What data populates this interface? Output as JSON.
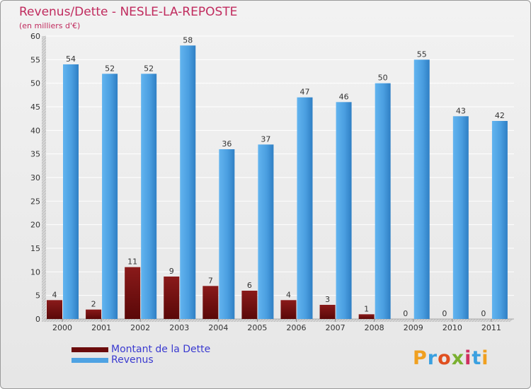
{
  "header": {
    "title": "Revenus/Dette - NESLE-LA-REPOSTE",
    "subtitle": "(en milliers d'€)"
  },
  "colors": {
    "debt": "#7a1212",
    "revenue": "#4fa3e3",
    "title": "#c02b5e",
    "legend_text": "#3a3ad0"
  },
  "legend": {
    "items": [
      {
        "label": "Montant de la Dette",
        "color": "#6b0c0c"
      },
      {
        "label": "Revenus",
        "color": "#4fa3e3"
      }
    ]
  },
  "logo": {
    "text": "Proxiti"
  },
  "chart_data": {
    "type": "bar",
    "title": "Revenus/Dette - NESLE-LA-REPOSTE",
    "subtitle": "(en milliers d'€)",
    "xlabel": "",
    "ylabel": "",
    "ylim": [
      0,
      60
    ],
    "yticks": [
      0,
      5,
      10,
      15,
      20,
      25,
      30,
      35,
      40,
      45,
      50,
      55,
      60
    ],
    "grid": true,
    "legend_position": "bottom-left",
    "categories": [
      "2000",
      "2001",
      "2002",
      "2003",
      "2004",
      "2005",
      "2006",
      "2007",
      "2008",
      "2009",
      "2010",
      "2011"
    ],
    "series": [
      {
        "name": "Montant de la Dette",
        "values": [
          4,
          2,
          11,
          9,
          7,
          6,
          4,
          3,
          1,
          0,
          0,
          0
        ]
      },
      {
        "name": "Revenus",
        "values": [
          54,
          52,
          52,
          58,
          36,
          37,
          47,
          46,
          50,
          55,
          43,
          42
        ]
      }
    ]
  }
}
